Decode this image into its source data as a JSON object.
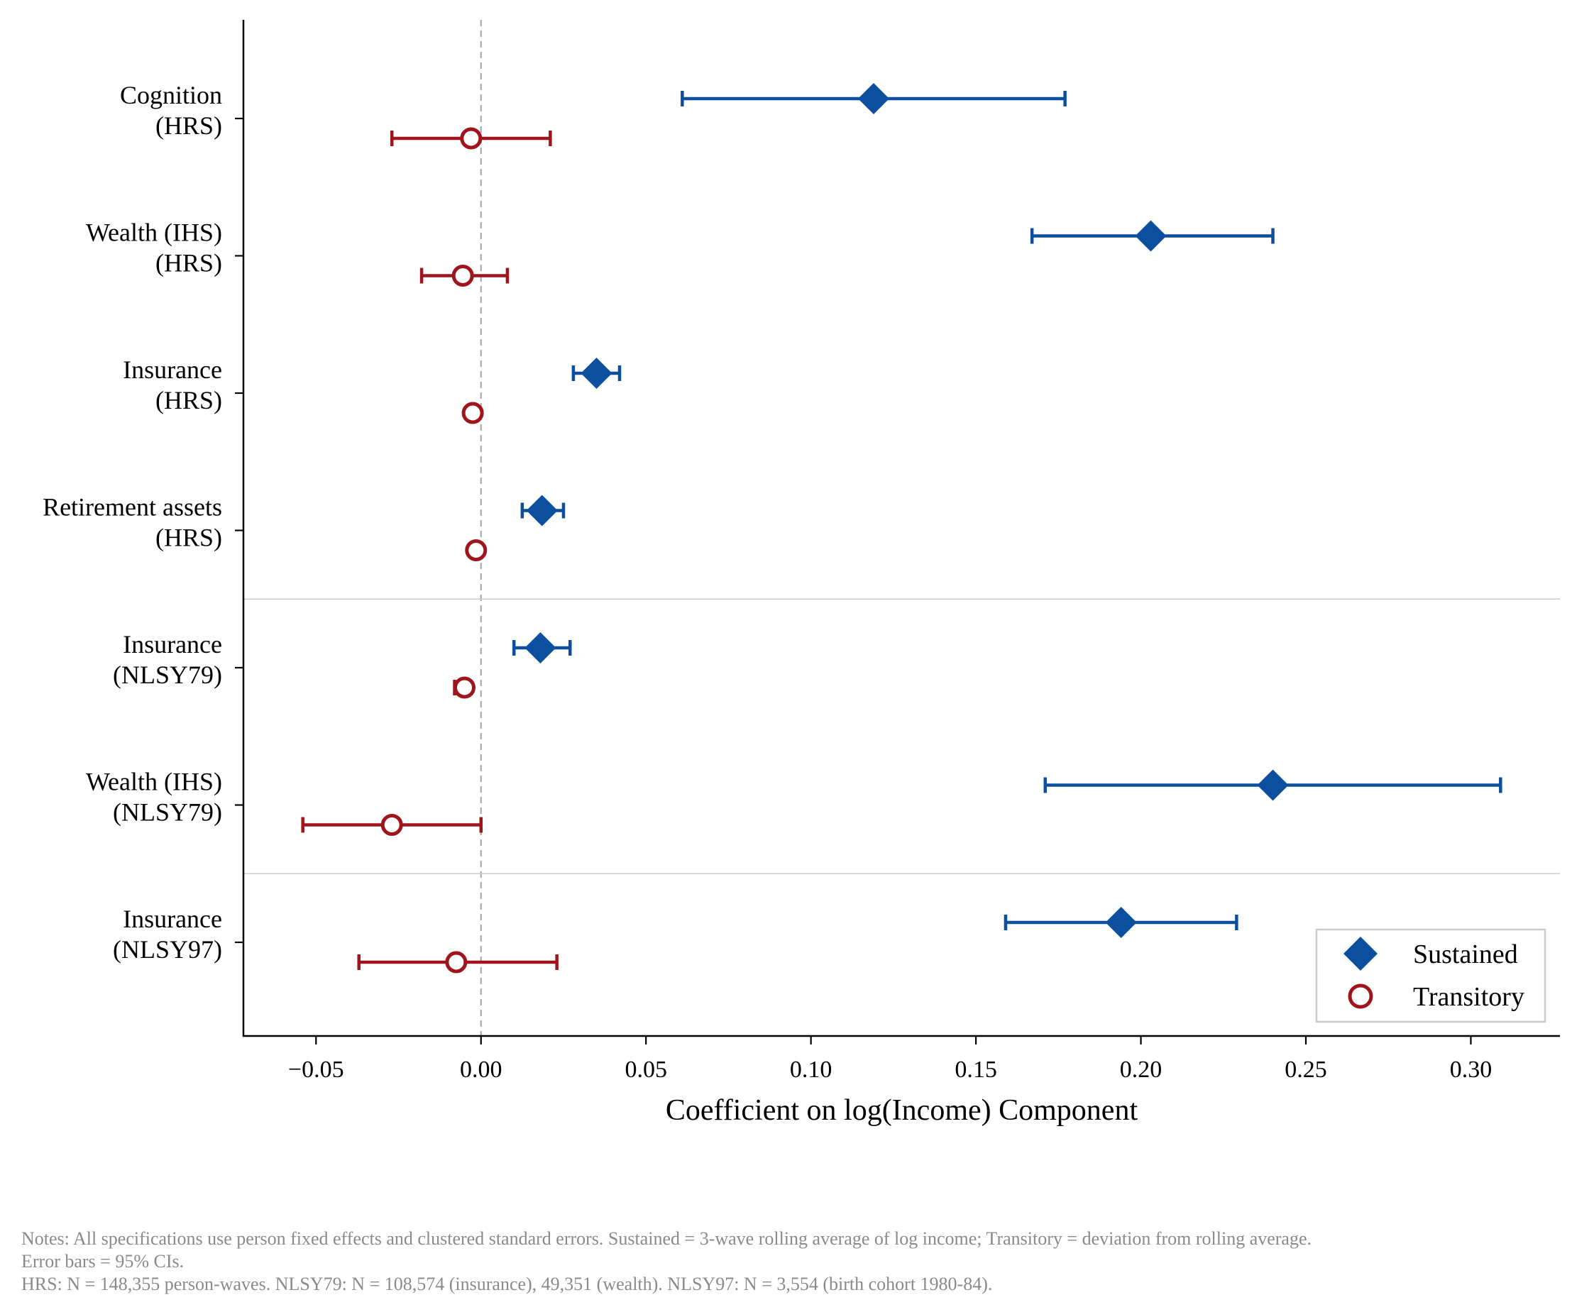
{
  "chart_data": {
    "type": "scatter",
    "subtype": "coefficient-plot-horizontal",
    "xlabel": "Coefficient on log(Income) Component",
    "ylabel": "",
    "xlim": [
      -0.072,
      0.327
    ],
    "xticks": [
      -0.05,
      0.0,
      0.05,
      0.1,
      0.15,
      0.2,
      0.25,
      0.3
    ],
    "xtick_labels": [
      "−0.05",
      "0.00",
      "0.05",
      "0.10",
      "0.15",
      "0.20",
      "0.25",
      "0.30"
    ],
    "reference_line_x": 0.0,
    "group_separators_after": [
      3,
      5
    ],
    "categories": [
      [
        "Cognition",
        "(HRS)"
      ],
      [
        "Wealth (IHS)",
        "(HRS)"
      ],
      [
        "Insurance",
        "(HRS)"
      ],
      [
        "Retirement assets",
        "(HRS)"
      ],
      [
        "Insurance",
        "(NLSY79)"
      ],
      [
        "Wealth (IHS)",
        "(NLSY79)"
      ],
      [
        "Insurance",
        "(NLSY97)"
      ]
    ],
    "series": [
      {
        "name": "Sustained",
        "marker": "diamond",
        "color": "#0B4F9E",
        "estimates": [
          0.119,
          0.203,
          0.035,
          0.0185,
          0.018,
          0.24,
          0.194
        ],
        "ci_low": [
          0.061,
          0.167,
          0.028,
          0.0125,
          0.01,
          0.171,
          0.159
        ],
        "ci_high": [
          0.177,
          0.24,
          0.042,
          0.025,
          0.027,
          0.309,
          0.229
        ]
      },
      {
        "name": "Transitory",
        "marker": "open-circle",
        "color": "#A0141C",
        "estimates": [
          -0.003,
          -0.0055,
          -0.0025,
          -0.0015,
          -0.005,
          -0.027,
          -0.0075
        ],
        "ci_low": [
          -0.027,
          -0.018,
          -0.003,
          -0.002,
          -0.008,
          -0.054,
          -0.037
        ],
        "ci_high": [
          0.021,
          0.008,
          -0.002,
          -0.001,
          -0.003,
          0.0,
          0.023
        ]
      }
    ],
    "legend_position": "bottom-right",
    "grid": false
  },
  "notes": [
    "Notes: All specifications use person fixed effects and clustered standard errors. Sustained = 3-wave rolling average of log income; Transitory = deviation from rolling average.",
    "Error bars = 95% CIs.",
    "HRS: N = 148,355 person-waves. NLSY79: N = 108,574 (insurance), 49,351 (wealth). NLSY97: N = 3,554 (birth cohort 1980-84)."
  ]
}
